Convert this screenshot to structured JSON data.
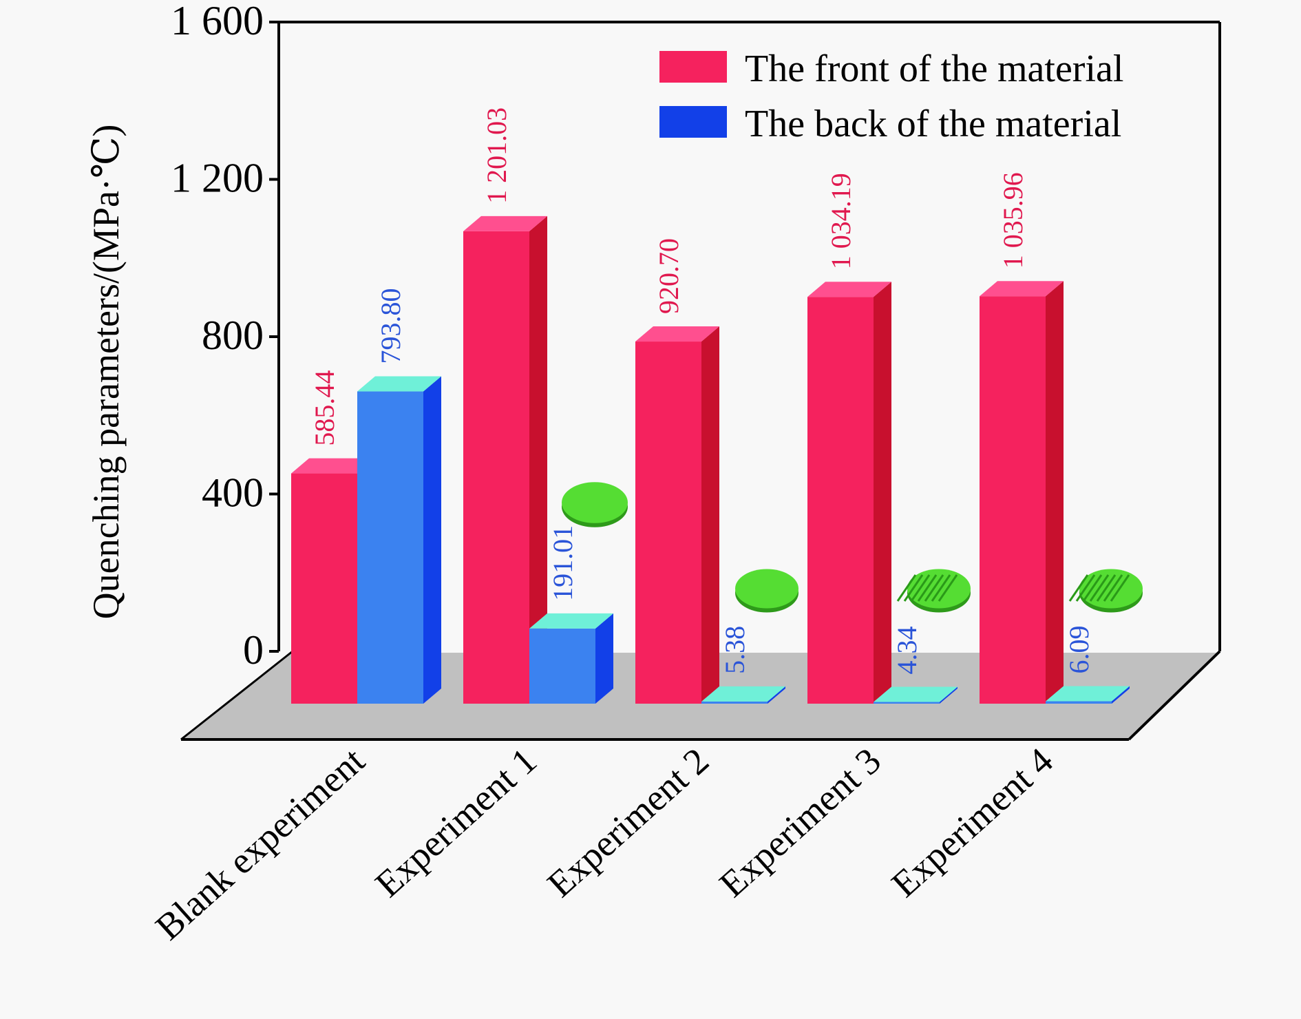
{
  "chart_data": {
    "type": "bar",
    "title": "",
    "xlabel": "",
    "ylabel": "Quenching parameters/(MPa·℃)",
    "ylim": [
      0,
      1600
    ],
    "yticks": [
      0,
      400,
      800,
      1200,
      1600
    ],
    "ytick_labels": [
      "0",
      "400",
      "800",
      "1 200",
      "1 600"
    ],
    "categories": [
      "Blank experiment",
      "Experiment 1",
      "Experiment 2",
      "Experiment 3",
      "Experiment 4"
    ],
    "series": [
      {
        "name": "The front of the material",
        "values": [
          585.44,
          1201.03,
          920.7,
          1034.19,
          1035.96
        ],
        "labels": [
          "585.44",
          "1 201.03",
          "920.70",
          "1 034.19",
          "1 035.96"
        ]
      },
      {
        "name": "The back of the material",
        "values": [
          793.8,
          191.01,
          5.38,
          4.34,
          6.09
        ],
        "labels": [
          "793.80",
          "191.01",
          "5.38",
          "4.34",
          "6.09"
        ]
      }
    ],
    "legend_position": "top-right",
    "grid": false,
    "three_d": true
  },
  "colors": {
    "front_face": "#f5225e",
    "front_side": "#c8102e",
    "front_top": "#ff4f8f",
    "front_label": "#e0184e",
    "back_face": "#3b82f0",
    "back_side": "#1240e8",
    "back_top": "#6ff0d8",
    "back_label": "#2a54d8",
    "floor": "#c0c0c0",
    "sample_disc": "#55dd33"
  }
}
